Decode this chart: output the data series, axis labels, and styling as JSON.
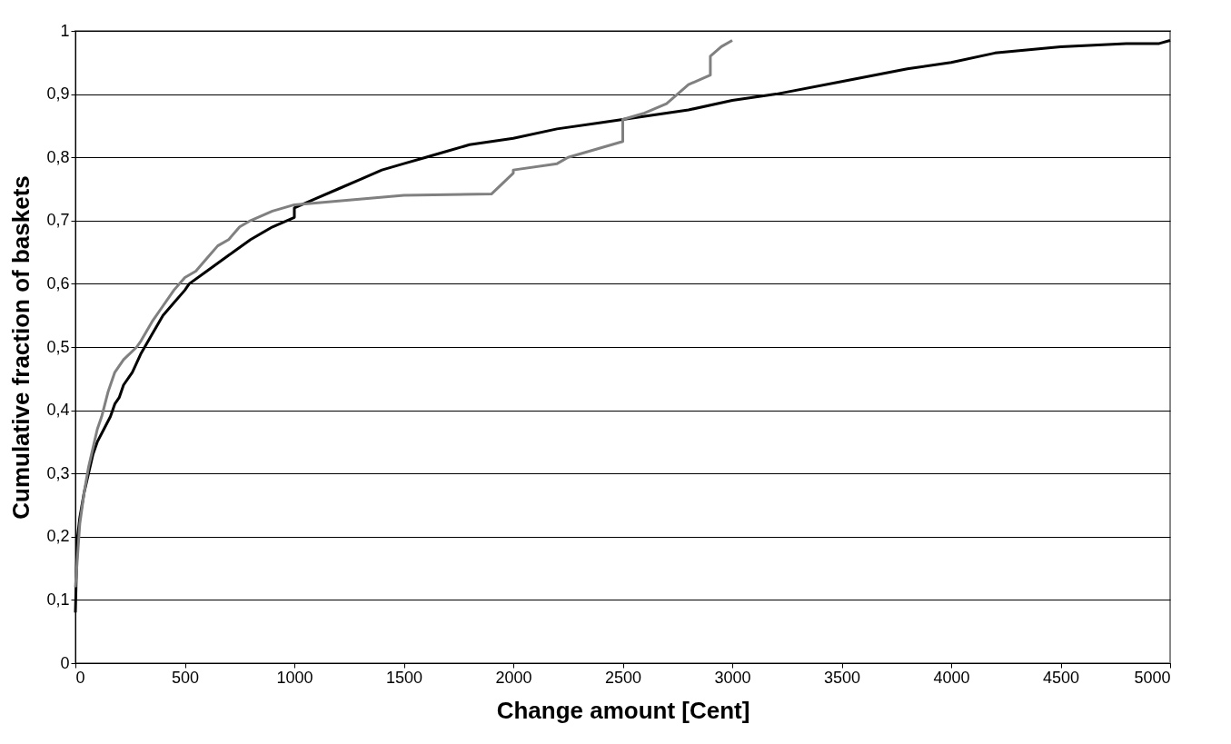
{
  "chart_data": {
    "type": "line",
    "xlabel": "Change amount [Cent]",
    "ylabel": "Cumulative fraction of baskets",
    "xlim": [
      0,
      5000
    ],
    "xticks": [
      0,
      500,
      1000,
      1500,
      2000,
      2500,
      3000,
      3500,
      4000,
      4500,
      5000
    ],
    "ylim": [
      0,
      1
    ],
    "yticks": [
      0,
      {
        "value": 0.1,
        "label": "0,1"
      },
      {
        "value": 0.2,
        "label": "0,2"
      },
      {
        "value": 0.3,
        "label": "0,3"
      },
      {
        "value": 0.4,
        "label": "0,4"
      },
      {
        "value": 0.5,
        "label": "0,5"
      },
      {
        "value": 0.6,
        "label": "0,6"
      },
      {
        "value": 0.7,
        "label": "0,7"
      },
      {
        "value": 0.8,
        "label": "0,8"
      },
      {
        "value": 0.9,
        "label": "0,9"
      },
      1
    ],
    "grid": "y",
    "marker": "none",
    "line_style": "solid",
    "series": [
      {
        "color": "#000000",
        "x": [
          0,
          5,
          10,
          20,
          40,
          60,
          80,
          100,
          130,
          160,
          180,
          200,
          220,
          260,
          300,
          350,
          400,
          450,
          500,
          520,
          600,
          700,
          800,
          900,
          1000,
          1000,
          1100,
          1200,
          1300,
          1400,
          1500,
          1600,
          1700,
          1800,
          2000,
          2200,
          2400,
          2600,
          2800,
          3000,
          3200,
          3500,
          3800,
          4000,
          4200,
          4500,
          4800,
          4950,
          5000
        ],
        "values": [
          0.08,
          0.15,
          0.2,
          0.23,
          0.27,
          0.3,
          0.33,
          0.35,
          0.37,
          0.39,
          0.41,
          0.42,
          0.44,
          0.46,
          0.49,
          0.52,
          0.55,
          0.57,
          0.59,
          0.6,
          0.62,
          0.645,
          0.67,
          0.69,
          0.705,
          0.72,
          0.735,
          0.75,
          0.765,
          0.78,
          0.79,
          0.8,
          0.81,
          0.82,
          0.83,
          0.845,
          0.855,
          0.865,
          0.875,
          0.89,
          0.9,
          0.92,
          0.94,
          0.95,
          0.965,
          0.975,
          0.98,
          0.98,
          0.985
        ]
      },
      {
        "color": "#808080",
        "x": [
          0,
          10,
          20,
          40,
          60,
          80,
          100,
          120,
          150,
          180,
          220,
          280,
          300,
          350,
          400,
          450,
          500,
          550,
          600,
          650,
          700,
          750,
          800,
          900,
          1000,
          1500,
          1900,
          2000,
          2000,
          2200,
          2250,
          2300,
          2450,
          2500,
          2500,
          2600,
          2700,
          2750,
          2800,
          2900,
          2900,
          2950,
          3000
        ],
        "values": [
          0.12,
          0.17,
          0.22,
          0.27,
          0.31,
          0.34,
          0.37,
          0.39,
          0.43,
          0.46,
          0.48,
          0.5,
          0.51,
          0.54,
          0.565,
          0.59,
          0.61,
          0.62,
          0.64,
          0.66,
          0.67,
          0.69,
          0.7,
          0.715,
          0.725,
          0.74,
          0.742,
          0.775,
          0.78,
          0.79,
          0.8,
          0.805,
          0.82,
          0.825,
          0.86,
          0.87,
          0.885,
          0.9,
          0.915,
          0.93,
          0.96,
          0.975,
          0.985
        ]
      }
    ]
  }
}
